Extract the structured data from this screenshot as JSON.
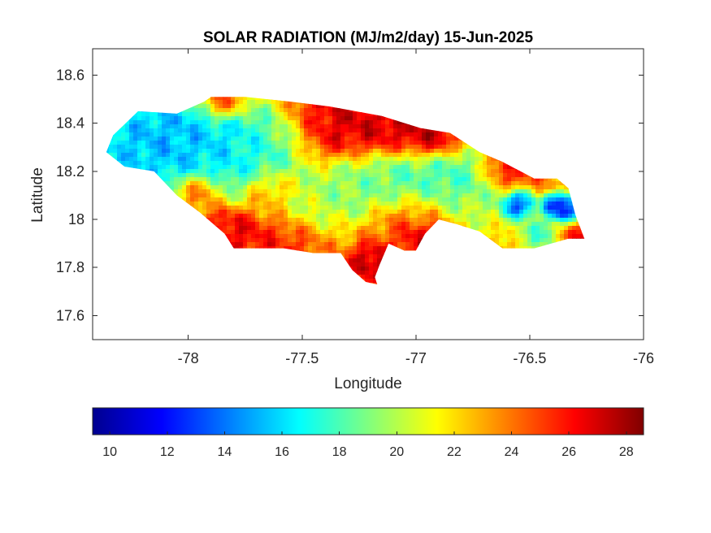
{
  "chart_data": {
    "type": "heatmap",
    "title": "SOLAR RADIATION (MJ/m2/day) 15-Jun-2025",
    "xlabel": "Longitude",
    "ylabel": "Latitude",
    "xlim": [
      -78.42,
      -76.0
    ],
    "ylim": [
      17.5,
      18.71
    ],
    "xticks": [
      -78,
      -77.5,
      -77,
      -76.5,
      -76
    ],
    "yticks": [
      17.6,
      17.8,
      18,
      18.2,
      18.4,
      18.6
    ],
    "colormap": "jet",
    "clim": [
      9.4,
      28.6
    ],
    "colorbar": {
      "location": "bottom",
      "ticks": [
        10,
        12,
        14,
        16,
        18,
        20,
        22,
        24,
        26,
        28
      ]
    },
    "grid": false,
    "region": "Jamaica",
    "outline_lonlat": [
      [
        -78.36,
        18.28
      ],
      [
        -78.33,
        18.35
      ],
      [
        -78.22,
        18.45
      ],
      [
        -78.05,
        18.44
      ],
      [
        -77.93,
        18.49
      ],
      [
        -77.9,
        18.51
      ],
      [
        -77.75,
        18.51
      ],
      [
        -77.55,
        18.49
      ],
      [
        -77.38,
        18.47
      ],
      [
        -77.15,
        18.43
      ],
      [
        -76.98,
        18.38
      ],
      [
        -76.85,
        18.36
      ],
      [
        -76.72,
        18.28
      ],
      [
        -76.62,
        18.24
      ],
      [
        -76.48,
        18.17
      ],
      [
        -76.38,
        18.17
      ],
      [
        -76.33,
        18.13
      ],
      [
        -76.3,
        18.02
      ],
      [
        -76.26,
        17.92
      ],
      [
        -76.33,
        17.92
      ],
      [
        -76.48,
        17.88
      ],
      [
        -76.62,
        17.88
      ],
      [
        -76.72,
        17.95
      ],
      [
        -76.82,
        17.98
      ],
      [
        -76.9,
        18.0
      ],
      [
        -76.96,
        17.94
      ],
      [
        -77.0,
        17.87
      ],
      [
        -77.05,
        17.87
      ],
      [
        -77.12,
        17.9
      ],
      [
        -77.16,
        17.81
      ],
      [
        -77.18,
        17.76
      ],
      [
        -77.17,
        17.73
      ],
      [
        -77.22,
        17.74
      ],
      [
        -77.28,
        17.79
      ],
      [
        -77.33,
        17.86
      ],
      [
        -77.45,
        17.86
      ],
      [
        -77.58,
        17.88
      ],
      [
        -77.72,
        17.88
      ],
      [
        -77.8,
        17.88
      ],
      [
        -77.84,
        17.94
      ],
      [
        -77.95,
        18.03
      ],
      [
        -78.05,
        18.1
      ],
      [
        -78.15,
        18.2
      ],
      [
        -78.28,
        18.22
      ]
    ],
    "field_features": [
      {
        "lon": -78.1,
        "lat": 18.33,
        "value": 14.0,
        "radius": 0.23
      },
      {
        "lon": -78.28,
        "lat": 18.3,
        "value": 15.5,
        "radius": 0.12
      },
      {
        "lon": -77.85,
        "lat": 18.32,
        "value": 15.5,
        "radius": 0.18
      },
      {
        "lon": -77.75,
        "lat": 18.22,
        "value": 16.5,
        "radius": 0.17
      },
      {
        "lon": -77.62,
        "lat": 18.33,
        "value": 17.5,
        "radius": 0.15
      },
      {
        "lon": -77.5,
        "lat": 18.08,
        "value": 20.0,
        "radius": 0.15
      },
      {
        "lon": -77.3,
        "lat": 18.14,
        "value": 18.5,
        "radius": 0.15
      },
      {
        "lon": -77.05,
        "lat": 18.16,
        "value": 17.5,
        "radius": 0.15
      },
      {
        "lon": -76.85,
        "lat": 18.14,
        "value": 17.0,
        "radius": 0.15
      },
      {
        "lon": -76.7,
        "lat": 18.06,
        "value": 20.0,
        "radius": 0.12
      },
      {
        "lon": -76.56,
        "lat": 18.06,
        "value": 10.8,
        "radius": 0.06
      },
      {
        "lon": -76.36,
        "lat": 18.05,
        "value": 10.5,
        "radius": 0.06
      },
      {
        "lon": -76.45,
        "lat": 17.94,
        "value": 17.5,
        "radius": 0.08
      },
      {
        "lon": -77.4,
        "lat": 18.38,
        "value": 27.5,
        "radius": 0.16
      },
      {
        "lon": -77.12,
        "lat": 18.4,
        "value": 27.5,
        "radius": 0.15
      },
      {
        "lon": -76.95,
        "lat": 18.35,
        "value": 28.0,
        "radius": 0.1
      },
      {
        "lon": -77.85,
        "lat": 18.48,
        "value": 27.0,
        "radius": 0.08
      },
      {
        "lon": -77.8,
        "lat": 17.95,
        "value": 27.0,
        "radius": 0.12
      },
      {
        "lon": -77.6,
        "lat": 17.92,
        "value": 26.0,
        "radius": 0.12
      },
      {
        "lon": -77.18,
        "lat": 17.82,
        "value": 28.0,
        "radius": 0.08
      },
      {
        "lon": -76.98,
        "lat": 17.92,
        "value": 28.0,
        "radius": 0.07
      },
      {
        "lon": -77.0,
        "lat": 18.0,
        "value": 25.0,
        "radius": 0.14
      },
      {
        "lon": -76.6,
        "lat": 18.2,
        "value": 26.5,
        "radius": 0.08
      },
      {
        "lon": -76.3,
        "lat": 17.92,
        "value": 27.0,
        "radius": 0.06
      },
      {
        "lon": -77.65,
        "lat": 18.12,
        "value": 25.0,
        "radius": 0.1
      },
      {
        "lon": -77.95,
        "lat": 18.12,
        "value": 25.5,
        "radius": 0.08
      }
    ],
    "background_value": 23.5,
    "colors": {
      "jet_stops": [
        "#00008f",
        "#0000ff",
        "#00ffff",
        "#ffff00",
        "#ff0000",
        "#800000"
      ],
      "axes_color": "#262626"
    }
  }
}
